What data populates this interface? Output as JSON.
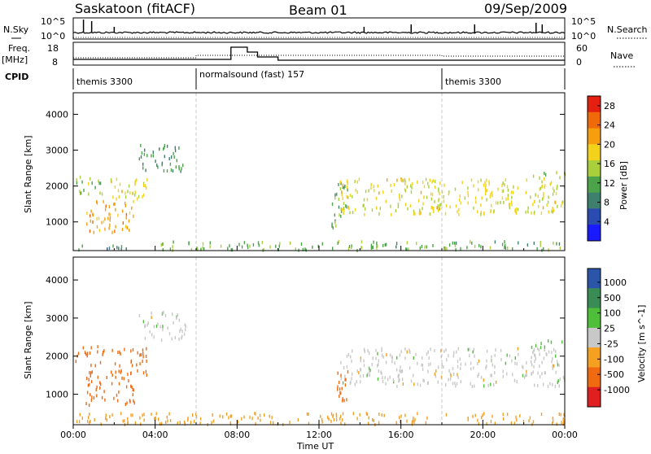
{
  "header": {
    "title": "Saskatoon (fitACF)",
    "beam": "Beam 01",
    "date": "09/Sep/2009"
  },
  "panels": {
    "nsky": {
      "label": "N.Sky",
      "ticks": [
        "10^5",
        "10^0"
      ],
      "right_label": "N.Search",
      "right_ticks": [
        "10^5",
        "10^0"
      ]
    },
    "freq": {
      "label_line1": "Freq.",
      "label_line2": "[MHz]",
      "ticks": [
        "18",
        "8"
      ],
      "right_label": "Nave",
      "right_ticks": [
        "60",
        "0"
      ]
    },
    "cpid": {
      "label": "CPID",
      "segments": [
        {
          "name": "themis 3300",
          "start_hour": 0
        },
        {
          "name": "normalsound (fast) 157",
          "start_hour": 6
        },
        {
          "name": "themis 3300",
          "start_hour": 18
        }
      ]
    }
  },
  "time_axis": {
    "label": "Time UT",
    "ticks": [
      "00:00",
      "04:00",
      "08:00",
      "12:00",
      "16:00",
      "20:00",
      "00:00"
    ]
  },
  "colors": {
    "power_scale": [
      "#1a1aff",
      "#2a4bb0",
      "#3e7f6e",
      "#4da34a",
      "#a9cf3a",
      "#f2d21a",
      "#f59f0c",
      "#f06a0a",
      "#e52010"
    ],
    "velocity_scale": [
      "#e02020",
      "#f06a10",
      "#f5a020",
      "#c8c8c8",
      "#4fbf3a",
      "#3a8c55",
      "#2a55a8"
    ]
  },
  "chart_data": [
    {
      "type": "heatmap",
      "title": "Power",
      "ylabel": "Slant Range [km]",
      "xlabel": "Time UT",
      "y_ticks": [
        1000,
        2000,
        3000,
        4000
      ],
      "ylim": [
        200,
        4600
      ],
      "xlim_hours": [
        0,
        24
      ],
      "colorbar": {
        "label": "Power [dB]",
        "ticks": [
          "4",
          "8",
          "12",
          "16",
          "20",
          "24",
          "28"
        ],
        "range": [
          0,
          30
        ]
      },
      "regions": [
        {
          "t0": 0.1,
          "t1": 3.2,
          "r0": 200,
          "r1": 330,
          "value": 8
        },
        {
          "t0": 0.1,
          "t1": 1.5,
          "r0": 1750,
          "r1": 2250,
          "value": 14
        },
        {
          "t0": 0.6,
          "t1": 3.0,
          "r0": 700,
          "r1": 1600,
          "value": 22
        },
        {
          "t0": 1.8,
          "t1": 3.6,
          "r0": 1500,
          "r1": 2200,
          "value": 18
        },
        {
          "t0": 3.2,
          "t1": 5.5,
          "r0": 2400,
          "r1": 3150,
          "value": 10
        },
        {
          "t0": 12.6,
          "t1": 13.4,
          "r0": 800,
          "r1": 2100,
          "value": 12
        },
        {
          "t0": 13.0,
          "t1": 24.0,
          "r0": 1200,
          "r1": 2200,
          "value": 18
        },
        {
          "t0": 4.0,
          "t1": 24.0,
          "r0": 200,
          "r1": 450,
          "value": 12
        },
        {
          "t0": 22.3,
          "t1": 24.0,
          "r0": 2200,
          "r1": 2400,
          "value": 14
        }
      ]
    },
    {
      "type": "heatmap",
      "title": "Velocity",
      "ylabel": "Slant Range [km]",
      "xlabel": "Time UT",
      "y_ticks": [
        1000,
        2000,
        3000,
        4000
      ],
      "ylim": [
        200,
        4600
      ],
      "xlim_hours": [
        0,
        24
      ],
      "colorbar": {
        "label": "Velocity [m s^-1]",
        "ticks": [
          "1000",
          "500",
          "100",
          "25",
          "-25",
          "-100",
          "-500",
          "-1000"
        ]
      },
      "regions": [
        {
          "t0": 0.1,
          "t1": 1.5,
          "r0": 1750,
          "r1": 2250,
          "value": -200
        },
        {
          "t0": 0.6,
          "t1": 3.0,
          "r0": 700,
          "r1": 1600,
          "value": -300
        },
        {
          "t0": 1.8,
          "t1": 3.6,
          "r0": 1500,
          "r1": 2200,
          "value": -400
        },
        {
          "t0": 3.2,
          "t1": 5.5,
          "r0": 2400,
          "r1": 3150,
          "value": 0
        },
        {
          "t0": 12.6,
          "t1": 13.4,
          "r0": 800,
          "r1": 1700,
          "value": -150
        },
        {
          "t0": 13.0,
          "t1": 24.0,
          "r0": 1200,
          "r1": 2200,
          "value": 0
        },
        {
          "t0": 0.1,
          "t1": 24.0,
          "r0": 200,
          "r1": 500,
          "value": -60
        },
        {
          "t0": 22.3,
          "t1": 24.0,
          "r0": 2200,
          "r1": 2400,
          "value": 60
        }
      ]
    }
  ]
}
